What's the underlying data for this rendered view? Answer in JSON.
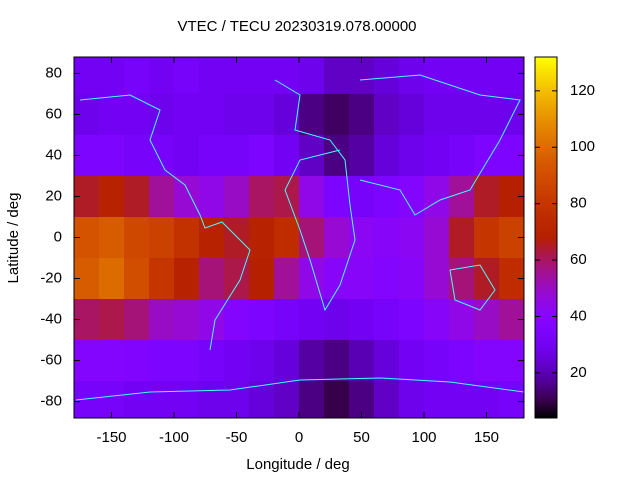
{
  "chart_data": {
    "type": "heatmap",
    "title": "VTEC / TECU 20230319.078.00000",
    "x_label": "Longitude / deg",
    "y_label": "Latitude / deg",
    "x": [
      -170,
      -150,
      -130,
      -110,
      -90,
      -70,
      -50,
      -30,
      -10,
      10,
      30,
      50,
      70,
      90,
      110,
      130,
      150,
      170
    ],
    "y": [
      80,
      60,
      40,
      20,
      0,
      -20,
      -40,
      -60,
      -80
    ],
    "z": [
      [
        30,
        30,
        32,
        30,
        32,
        30,
        30,
        30,
        30,
        28,
        22,
        22,
        25,
        28,
        30,
        30,
        30,
        30
      ],
      [
        28,
        30,
        30,
        28,
        30,
        30,
        28,
        28,
        25,
        15,
        12,
        15,
        22,
        25,
        28,
        28,
        28,
        28
      ],
      [
        35,
        35,
        32,
        32,
        30,
        32,
        32,
        35,
        30,
        22,
        15,
        18,
        25,
        28,
        30,
        32,
        35,
        35
      ],
      [
        65,
        70,
        65,
        55,
        48,
        45,
        50,
        60,
        62,
        45,
        35,
        32,
        35,
        38,
        45,
        55,
        65,
        68
      ],
      [
        92,
        95,
        88,
        85,
        78,
        70,
        65,
        70,
        75,
        58,
        48,
        42,
        40,
        42,
        48,
        65,
        80,
        85
      ],
      [
        95,
        100,
        90,
        80,
        70,
        58,
        62,
        68,
        55,
        45,
        40,
        40,
        38,
        40,
        48,
        58,
        65,
        75
      ],
      [
        60,
        62,
        58,
        50,
        48,
        45,
        38,
        35,
        32,
        30,
        28,
        30,
        32,
        35,
        40,
        45,
        50,
        55
      ],
      [
        38,
        38,
        36,
        35,
        35,
        32,
        30,
        28,
        25,
        18,
        15,
        20,
        25,
        30,
        32,
        35,
        38,
        38
      ],
      [
        32,
        32,
        30,
        30,
        30,
        28,
        28,
        25,
        22,
        15,
        10,
        15,
        22,
        28,
        30,
        30,
        30,
        32
      ]
    ],
    "xlim": [
      -180,
      180
    ],
    "ylim": [
      -88,
      88
    ],
    "xticks": [
      -150,
      -100,
      -50,
      0,
      50,
      100,
      150
    ],
    "yticks": [
      -80,
      -60,
      -40,
      -20,
      0,
      20,
      40,
      60,
      80
    ],
    "zlim": [
      4,
      132
    ],
    "zticks": [
      20,
      40,
      60,
      80,
      100,
      120
    ],
    "colormap": "gnuplot"
  }
}
